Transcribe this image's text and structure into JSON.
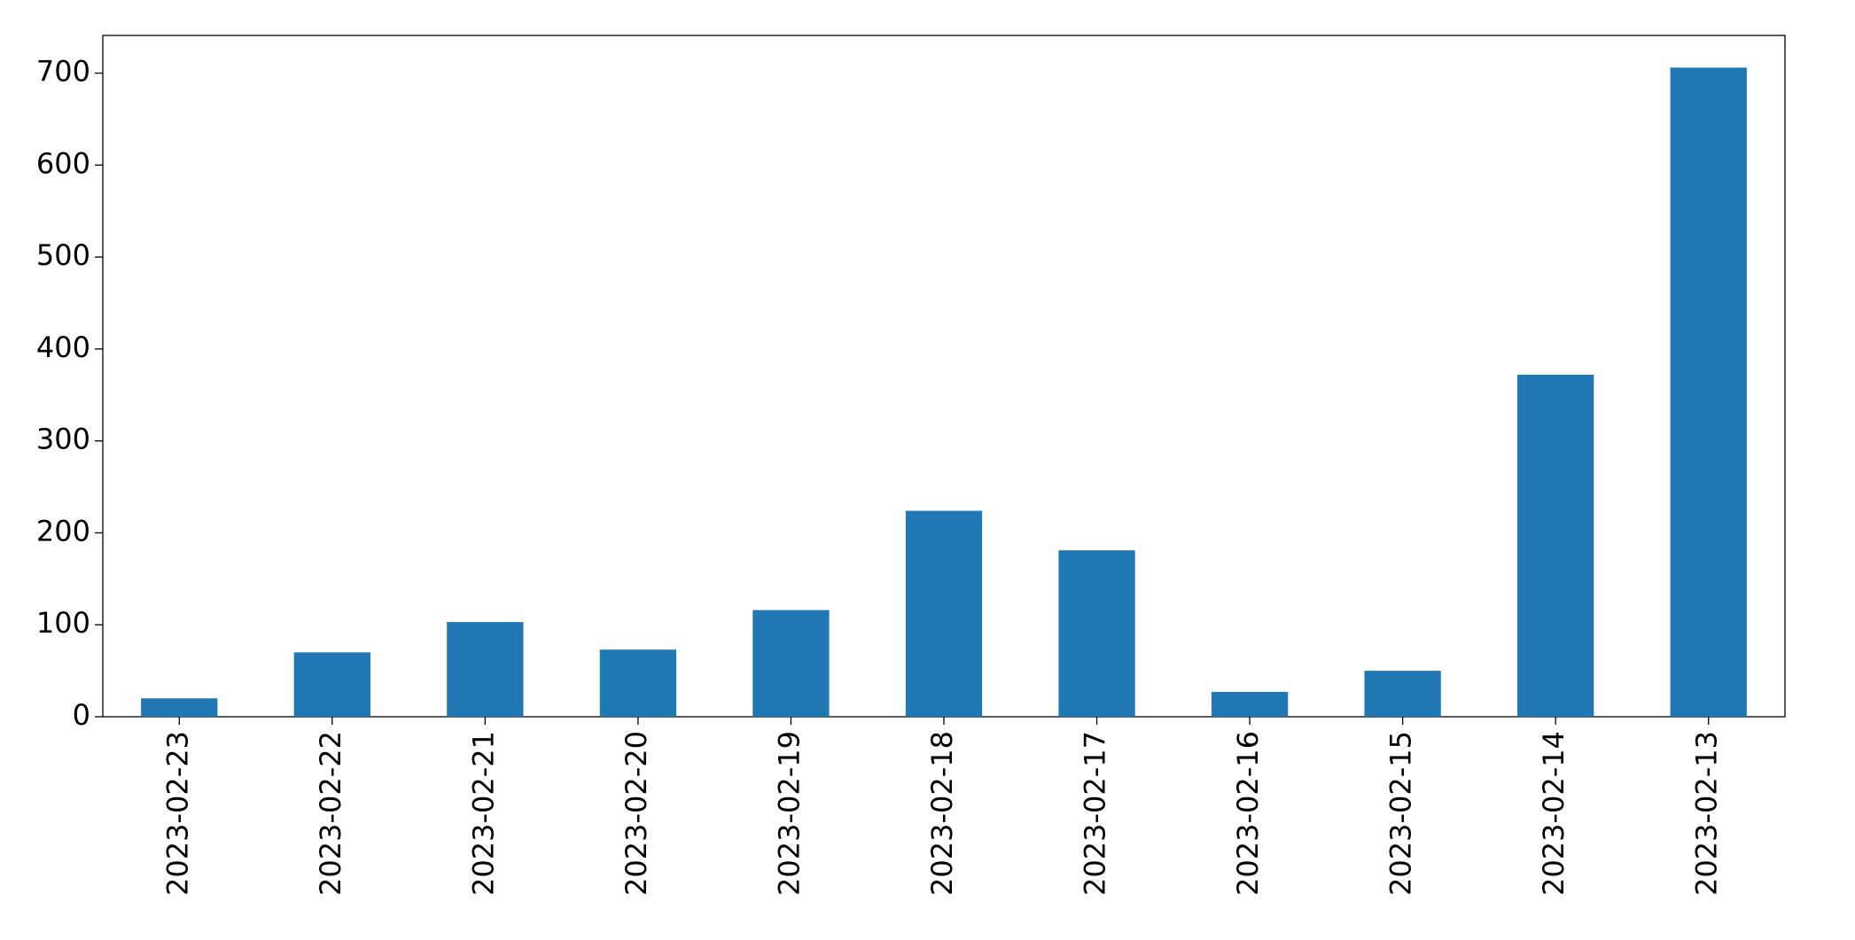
{
  "chart_data": {
    "type": "bar",
    "categories": [
      "2023-02-23",
      "2023-02-22",
      "2023-02-21",
      "2023-02-20",
      "2023-02-19",
      "2023-02-18",
      "2023-02-17",
      "2023-02-16",
      "2023-02-15",
      "2023-02-14",
      "2023-02-13"
    ],
    "values": [
      20,
      70,
      103,
      73,
      116,
      224,
      181,
      27,
      50,
      372,
      706
    ],
    "color": "#1f77b4",
    "ylim": [
      0,
      741
    ],
    "yticks": [
      0,
      100,
      200,
      300,
      400,
      500,
      600,
      700
    ],
    "grid": false
  }
}
